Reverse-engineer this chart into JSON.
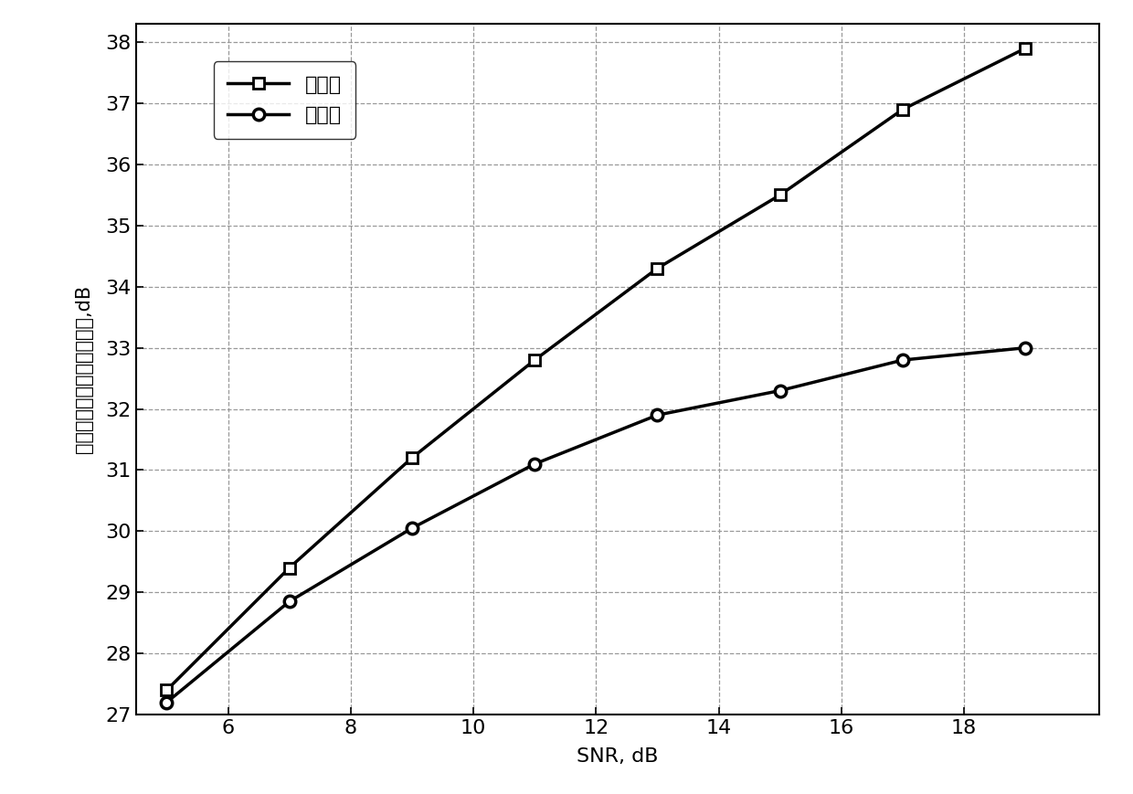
{
  "new_algo_x": [
    5,
    7,
    9,
    11,
    13,
    15,
    17,
    19
  ],
  "new_algo_y": [
    27.4,
    29.4,
    31.2,
    32.8,
    34.3,
    35.5,
    36.9,
    37.9
  ],
  "old_algo_x": [
    5,
    7,
    9,
    11,
    13,
    15,
    17,
    19
  ],
  "old_algo_y": [
    27.2,
    28.85,
    30.05,
    31.1,
    31.9,
    32.3,
    32.8,
    33.0
  ],
  "new_algo_label": "新算法",
  "old_algo_label": "原算法",
  "xlabel": "SNR, dB",
  "ylabel": "频率估计度量的信噪比提升,dB",
  "xlim": [
    4.5,
    20.2
  ],
  "ylim": [
    27.0,
    38.3
  ],
  "xticks": [
    6,
    8,
    10,
    12,
    14,
    16,
    18
  ],
  "yticks": [
    27,
    28,
    29,
    30,
    31,
    32,
    33,
    34,
    35,
    36,
    37,
    38
  ],
  "line_color": "#000000",
  "background_color": "#ffffff",
  "grid_color": "#999999"
}
